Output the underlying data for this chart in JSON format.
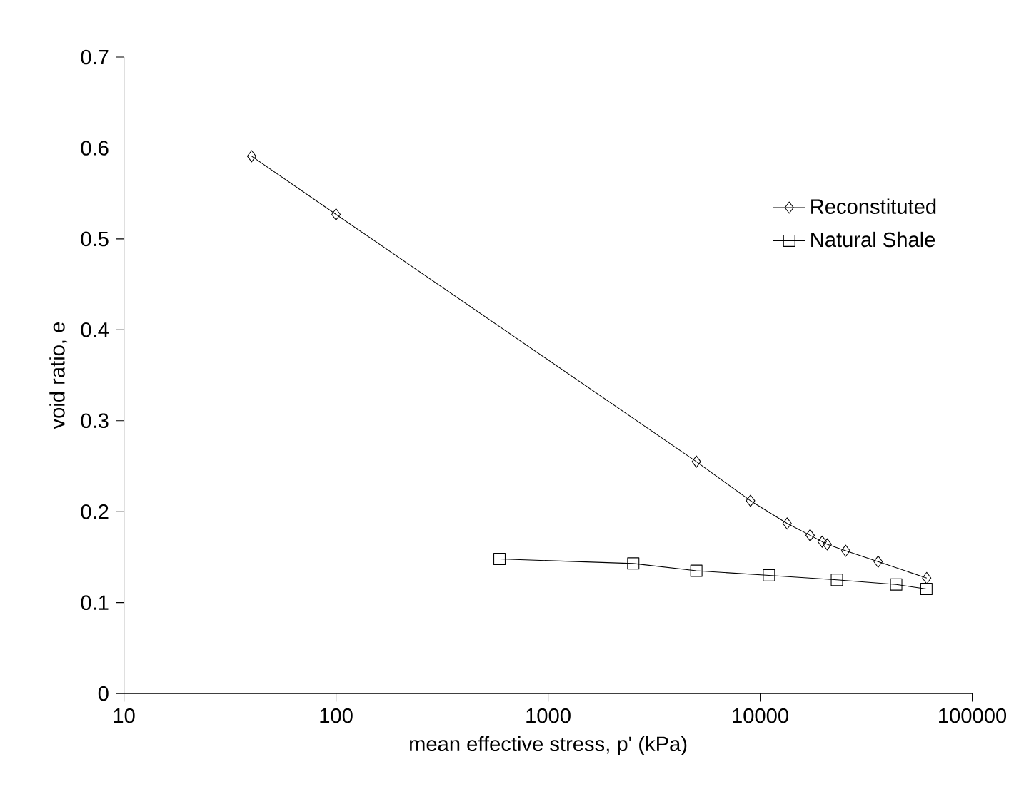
{
  "chart_data": {
    "type": "line",
    "xlabel": "mean effective stress, p' (kPa)",
    "ylabel": "void ratio, e",
    "log": "x",
    "legend": "top right",
    "grid": false,
    "xlim": [
      10,
      100000
    ],
    "xticks": [
      10,
      100,
      1000,
      10000,
      100000
    ],
    "ylim": [
      0,
      0.7
    ],
    "yticks": [
      0,
      0.1,
      0.2,
      0.3,
      0.4,
      0.5,
      0.6,
      0.7
    ],
    "series": [
      {
        "name": "Reconstituted",
        "color": "#000000",
        "marker": "diamond",
        "x": [
          40,
          100,
          5000,
          9000,
          13400,
          17200,
          19600,
          20700,
          25300,
          36000,
          61000
        ],
        "values": [
          0.591,
          0.527,
          0.255,
          0.212,
          0.187,
          0.174,
          0.167,
          0.164,
          0.157,
          0.145,
          0.127
        ]
      },
      {
        "name": "Natural Shale",
        "color": "#000000",
        "marker": "square",
        "x": [
          590,
          2520,
          5000,
          11000,
          23000,
          43800,
          60800
        ],
        "values": [
          0.148,
          0.143,
          0.135,
          0.13,
          0.125,
          0.12,
          0.115
        ]
      }
    ]
  }
}
